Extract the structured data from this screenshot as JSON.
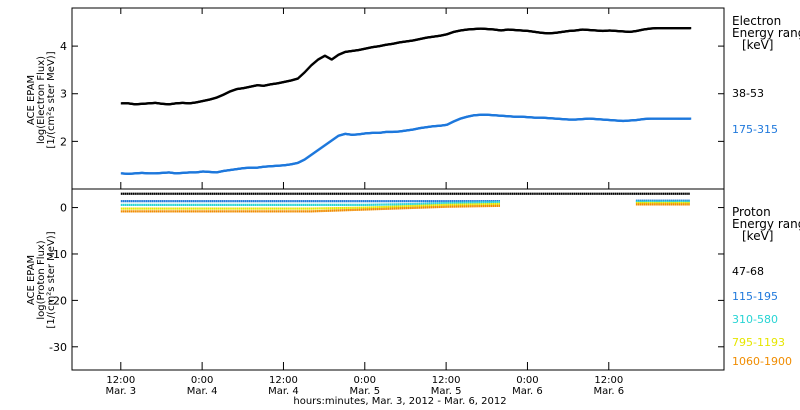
{
  "chart_data": [
    {
      "type": "scatter",
      "ylabel": [
        "ACE EPAM",
        "log(Electron Flux)",
        "[1/(cm²s ster MeV)]"
      ],
      "ylim": [
        1.0,
        4.8
      ],
      "yticks": [
        2,
        3,
        4
      ],
      "legend": {
        "title": [
          "Electron",
          "Energy ranges",
          "[keV]"
        ],
        "placement": "right",
        "entries": [
          {
            "label": "38-53",
            "color": "#000000"
          },
          {
            "label": "175-315",
            "color": "#1e78dc"
          }
        ]
      },
      "series": [
        {
          "name": "38-53",
          "color": "#000000",
          "x": [
            0,
            0.25,
            0.5,
            0.75,
            1.0,
            1.25,
            1.5,
            1.75,
            2.0,
            2.25,
            2.5,
            2.75,
            3.0,
            3.25,
            3.5,
            3.75,
            4.0,
            4.25,
            4.5,
            4.75,
            5.0,
            5.25,
            5.5,
            5.75,
            6.0,
            6.25,
            6.5,
            6.75,
            7.0,
            7.25,
            7.5,
            7.75,
            8.0,
            8.25,
            8.5,
            8.75,
            9.0,
            9.25,
            9.5,
            9.75,
            10.0,
            10.25,
            10.5,
            10.75,
            11.0,
            11.25,
            11.5,
            11.75,
            12.0,
            12.25,
            12.5,
            12.75,
            13.0,
            13.25,
            13.5,
            13.75,
            14.0,
            14.25,
            14.5,
            14.75,
            15.0,
            15.25,
            15.5,
            15.75,
            16.0,
            16.25,
            16.5,
            16.75,
            17.0,
            17.25,
            17.5,
            17.75,
            18.0,
            18.25,
            18.5,
            18.75,
            19.0,
            19.25,
            19.5,
            19.75,
            20.0,
            20.25,
            20.5,
            20.75,
            21.0
          ],
          "y": [
            2.8,
            2.8,
            2.78,
            2.79,
            2.8,
            2.81,
            2.79,
            2.78,
            2.8,
            2.81,
            2.8,
            2.82,
            2.85,
            2.88,
            2.92,
            2.98,
            3.05,
            3.1,
            3.12,
            3.15,
            3.18,
            3.17,
            3.2,
            3.22,
            3.25,
            3.28,
            3.32,
            3.45,
            3.6,
            3.72,
            3.8,
            3.72,
            3.82,
            3.88,
            3.9,
            3.92,
            3.95,
            3.98,
            4.0,
            4.03,
            4.05,
            4.08,
            4.1,
            4.12,
            4.15,
            4.18,
            4.2,
            4.22,
            4.25,
            4.3,
            4.33,
            4.35,
            4.36,
            4.37,
            4.36,
            4.35,
            4.33,
            4.35,
            4.34,
            4.33,
            4.32,
            4.3,
            4.28,
            4.27,
            4.28,
            4.3,
            4.32,
            4.33,
            4.35,
            4.34,
            4.33,
            4.32,
            4.33,
            4.32,
            4.31,
            4.3,
            4.32,
            4.35,
            4.37,
            4.38,
            4.38,
            4.38,
            4.38,
            4.38,
            4.38
          ]
        },
        {
          "name": "175-315",
          "color": "#1e78dc",
          "x": [
            0,
            0.25,
            0.5,
            0.75,
            1.0,
            1.25,
            1.5,
            1.75,
            2.0,
            2.25,
            2.5,
            2.75,
            3.0,
            3.25,
            3.5,
            3.75,
            4.0,
            4.25,
            4.5,
            4.75,
            5.0,
            5.25,
            5.5,
            5.75,
            6.0,
            6.25,
            6.5,
            6.75,
            7.0,
            7.25,
            7.5,
            7.75,
            8.0,
            8.25,
            8.5,
            8.75,
            9.0,
            9.25,
            9.5,
            9.75,
            10.0,
            10.25,
            10.5,
            10.75,
            11.0,
            11.25,
            11.5,
            11.75,
            12.0,
            12.25,
            12.5,
            12.75,
            13.0,
            13.25,
            13.5,
            13.75,
            14.0,
            14.25,
            14.5,
            14.75,
            15.0,
            15.25,
            15.5,
            15.75,
            16.0,
            16.25,
            16.5,
            16.75,
            17.0,
            17.25,
            17.5,
            17.75,
            18.0,
            18.25,
            18.5,
            18.75,
            19.0,
            19.25,
            19.5,
            19.75,
            20.0,
            20.25,
            20.5,
            20.75,
            21.0
          ],
          "y": [
            1.33,
            1.32,
            1.33,
            1.34,
            1.33,
            1.33,
            1.34,
            1.35,
            1.33,
            1.34,
            1.35,
            1.35,
            1.37,
            1.36,
            1.35,
            1.38,
            1.4,
            1.42,
            1.44,
            1.45,
            1.45,
            1.47,
            1.48,
            1.49,
            1.5,
            1.52,
            1.55,
            1.62,
            1.72,
            1.82,
            1.92,
            2.02,
            2.12,
            2.16,
            2.14,
            2.15,
            2.17,
            2.18,
            2.18,
            2.2,
            2.2,
            2.21,
            2.23,
            2.25,
            2.28,
            2.3,
            2.32,
            2.33,
            2.35,
            2.42,
            2.48,
            2.52,
            2.55,
            2.56,
            2.56,
            2.55,
            2.54,
            2.53,
            2.52,
            2.52,
            2.51,
            2.5,
            2.5,
            2.49,
            2.48,
            2.47,
            2.46,
            2.46,
            2.47,
            2.48,
            2.47,
            2.46,
            2.45,
            2.44,
            2.43,
            2.44,
            2.45,
            2.47,
            2.48,
            2.48,
            2.48,
            2.48,
            2.48,
            2.48,
            2.48
          ]
        }
      ]
    },
    {
      "type": "scatter",
      "ylabel": [
        "ACE EPAM",
        "log(Proton Flux)",
        "[1/(cm²s ster MeV)]"
      ],
      "ylim": [
        -35,
        4
      ],
      "yticks": [
        -30,
        -20,
        -10,
        0
      ],
      "legend": {
        "title": [
          "Proton",
          "Energy ranges",
          "[keV]"
        ],
        "placement": "right",
        "entries": [
          {
            "label": "47-68",
            "color": "#000000"
          },
          {
            "label": "115-195",
            "color": "#1e78dc"
          },
          {
            "label": "310-580",
            "color": "#28d4d4"
          },
          {
            "label": "795-1193",
            "color": "#e6e600"
          },
          {
            "label": "1060-1900",
            "color": "#f08c00"
          }
        ]
      },
      "x": [
        0,
        1,
        2,
        3,
        4,
        5,
        6,
        7,
        8,
        9,
        10,
        11,
        12,
        13,
        14,
        15,
        16,
        17,
        18,
        19,
        20,
        21
      ],
      "series": [
        {
          "name": "47-68",
          "color": "#000000",
          "y": [
            3.0,
            3.0,
            3.0,
            3.0,
            3.0,
            3.0,
            3.0,
            3.0,
            3.0,
            3.0,
            3.0,
            3.0,
            3.0,
            3.0,
            3.0,
            3.0,
            3.0,
            3.0,
            3.0,
            3.0,
            3.0,
            3.0
          ]
        },
        {
          "name": "115-195",
          "color": "#1e78dc",
          "y": [
            1.4,
            1.4,
            1.4,
            1.4,
            1.4,
            1.4,
            1.4,
            1.4,
            1.4,
            1.4,
            1.4,
            1.4,
            1.4,
            1.4,
            1.4,
            null,
            null,
            null,
            null,
            1.5,
            1.5,
            1.5
          ]
        },
        {
          "name": "310-580",
          "color": "#28d4d4",
          "y": [
            0.6,
            0.6,
            0.6,
            0.6,
            0.6,
            0.6,
            0.6,
            0.6,
            0.6,
            0.6,
            0.7,
            0.8,
            1.0,
            1.1,
            1.2,
            null,
            null,
            null,
            null,
            1.3,
            1.3,
            1.3
          ]
        },
        {
          "name": "795-1193",
          "color": "#e6e600",
          "y": [
            -0.2,
            -0.2,
            -0.2,
            -0.2,
            -0.2,
            -0.2,
            -0.2,
            -0.2,
            -0.1,
            0.0,
            0.2,
            0.4,
            0.6,
            0.7,
            0.8,
            null,
            null,
            null,
            null,
            1.0,
            1.0,
            1.0
          ]
        },
        {
          "name": "1060-1900",
          "color": "#f08c00",
          "y": [
            -0.8,
            -0.8,
            -0.8,
            -0.8,
            -0.8,
            -0.8,
            -0.8,
            -0.8,
            -0.6,
            -0.4,
            -0.2,
            0.0,
            0.2,
            0.3,
            0.4,
            null,
            null,
            null,
            null,
            0.7,
            0.7,
            0.7
          ]
        }
      ]
    }
  ],
  "xaxis": {
    "ticks": [
      {
        "x": 0,
        "time": "12:00",
        "date": "Mar. 3"
      },
      {
        "x": 3,
        "time": "0:00",
        "date": "Mar. 4"
      },
      {
        "x": 6,
        "time": "12:00",
        "date": "Mar. 4"
      },
      {
        "x": 9,
        "time": "0:00",
        "date": "Mar. 5"
      },
      {
        "x": 12,
        "time": "12:00",
        "date": "Mar. 5"
      },
      {
        "x": 15,
        "time": "0:00",
        "date": "Mar. 6"
      },
      {
        "x": 18,
        "time": "12:00",
        "date": "Mar. 6"
      }
    ],
    "xlabel": "hours:minutes, Mar.  3, 2012 - Mar.  6, 2012"
  }
}
